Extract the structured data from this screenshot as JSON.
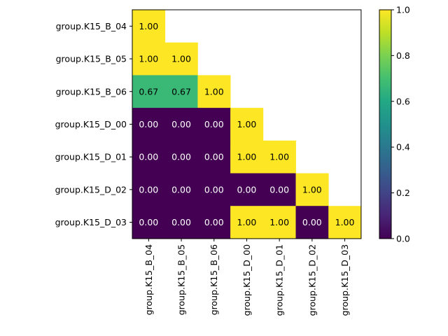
{
  "chart_data": {
    "type": "heatmap",
    "title": "",
    "xlabel": "",
    "ylabel": "",
    "row_labels": [
      "group.K15_B_04",
      "group.K15_B_05",
      "group.K15_B_06",
      "group.K15_D_00",
      "group.K15_D_01",
      "group.K15_D_02",
      "group.K15_D_03"
    ],
    "col_labels": [
      "group.K15_B_04",
      "group.K15_B_05",
      "group.K15_B_06",
      "group.K15_D_00",
      "group.K15_D_01",
      "group.K15_D_02",
      "group.K15_D_03"
    ],
    "values": [
      [
        1.0,
        null,
        null,
        null,
        null,
        null,
        null
      ],
      [
        1.0,
        1.0,
        null,
        null,
        null,
        null,
        null
      ],
      [
        0.67,
        0.67,
        1.0,
        null,
        null,
        null,
        null
      ],
      [
        0.0,
        0.0,
        0.0,
        1.0,
        null,
        null,
        null
      ],
      [
        0.0,
        0.0,
        0.0,
        1.0,
        1.0,
        null,
        null
      ],
      [
        0.0,
        0.0,
        0.0,
        0.0,
        0.0,
        1.0,
        null
      ],
      [
        0.0,
        0.0,
        0.0,
        1.0,
        1.0,
        0.0,
        1.0
      ]
    ],
    "value_format": "2 decimals",
    "colormap": "viridis",
    "colorbar": {
      "vmin": 0.0,
      "vmax": 1.0,
      "ticks": [
        "0.0",
        "0.2",
        "0.4",
        "0.6",
        "0.8",
        "1.0"
      ],
      "placement": "right"
    },
    "layout_triangle": "lower",
    "grid": false
  }
}
